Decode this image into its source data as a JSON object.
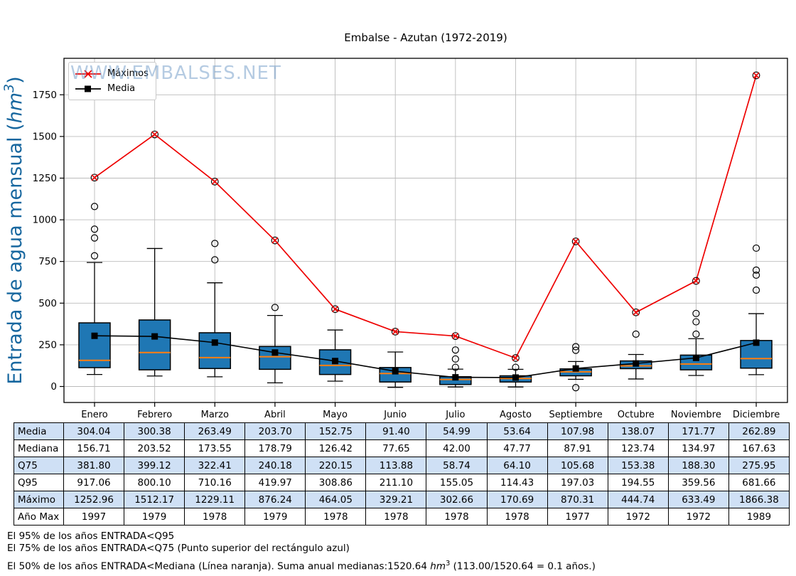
{
  "watermark": "WWW.EMBALSES.NET",
  "colors": {
    "box_fill": "#1f77b4",
    "box_edge": "#000000",
    "median_line": "#ff7f0e",
    "maximos_line": "#ee0000",
    "media_line": "#000000",
    "grid": "#bbbbbb",
    "ylabel": "#17679f",
    "watermark": "#6d98c7",
    "table_shade": "#cfe0f5"
  },
  "chart_data": {
    "type": "boxplot+lines",
    "title": "Embalse - Azutan (1972-2019)",
    "ylabel_pre": "Entrada de agua mensual (",
    "ylabel_unit": "hm",
    "ylabel_sup": "3",
    "ylabel_post": ")",
    "ylim": [
      -96,
      1969
    ],
    "yticks": [
      0,
      250,
      500,
      750,
      1000,
      1250,
      1500,
      1750
    ],
    "grid": true,
    "legend_position": "upper left",
    "categories": [
      "Enero",
      "Febrero",
      "Marzo",
      "Abril",
      "Mayo",
      "Junio",
      "Julio",
      "Agosto",
      "Septiembre",
      "Octubre",
      "Noviembre",
      "Diciembre"
    ],
    "series": [
      {
        "name": "Máximos",
        "marker": "x-in-circle",
        "values": [
          1252.96,
          1512.17,
          1229.11,
          876.24,
          464.05,
          329.21,
          302.66,
          170.69,
          870.31,
          444.74,
          633.49,
          1866.38
        ]
      },
      {
        "name": "Media",
        "marker": "square",
        "values": [
          304.04,
          300.38,
          263.49,
          203.7,
          152.75,
          91.4,
          54.99,
          53.64,
          107.98,
          138.07,
          171.77,
          262.89
        ]
      }
    ],
    "boxes": [
      {
        "month": "Enero",
        "q1": 113,
        "median": 156.71,
        "q3": 381.8,
        "whisker_low": 72,
        "whisker_high": 744,
        "outliers": [
          784,
          891,
          944,
          1080
        ]
      },
      {
        "month": "Febrero",
        "q1": 100,
        "median": 203.52,
        "q3": 399.12,
        "whisker_low": 63,
        "whisker_high": 828,
        "outliers": []
      },
      {
        "month": "Marzo",
        "q1": 108,
        "median": 173.55,
        "q3": 322.41,
        "whisker_low": 58,
        "whisker_high": 622,
        "outliers": [
          760,
          858
        ]
      },
      {
        "month": "Abril",
        "q1": 103,
        "median": 178.79,
        "q3": 240.18,
        "whisker_low": 22,
        "whisker_high": 426,
        "outliers": [
          474
        ]
      },
      {
        "month": "Mayo",
        "q1": 72,
        "median": 126.42,
        "q3": 220.15,
        "whisker_low": 32,
        "whisker_high": 339,
        "outliers": []
      },
      {
        "month": "Junio",
        "q1": 27,
        "median": 77.65,
        "q3": 113.88,
        "whisker_low": -5,
        "whisker_high": 207,
        "outliers": []
      },
      {
        "month": "Julio",
        "q1": 12,
        "median": 42.0,
        "q3": 58.74,
        "whisker_low": -3,
        "whisker_high": 104,
        "outliers": [
          115,
          165,
          219
        ]
      },
      {
        "month": "Agosto",
        "q1": 27,
        "median": 47.77,
        "q3": 64.1,
        "whisker_low": -3,
        "whisker_high": 103,
        "outliers": [
          115
        ]
      },
      {
        "month": "Septiembre",
        "q1": 64,
        "median": 87.91,
        "q3": 105.68,
        "whisker_low": 43,
        "whisker_high": 150,
        "outliers": [
          -7,
          217,
          239
        ]
      },
      {
        "month": "Octubre",
        "q1": 107,
        "median": 123.74,
        "q3": 153.38,
        "whisker_low": 45,
        "whisker_high": 192,
        "outliers": [
          314
        ]
      },
      {
        "month": "Noviembre",
        "q1": 100,
        "median": 134.97,
        "q3": 188.3,
        "whisker_low": 66,
        "whisker_high": 287,
        "outliers": [
          314,
          388,
          438
        ]
      },
      {
        "month": "Diciembre",
        "q1": 110,
        "median": 167.63,
        "q3": 275.95,
        "whisker_low": 71,
        "whisker_high": 437,
        "outliers": [
          578,
          668,
          698,
          830
        ]
      }
    ]
  },
  "table": {
    "row_labels": [
      "Media",
      "Mediana",
      "Q75",
      "Q95",
      "Máximo",
      "Año Max"
    ],
    "rows": [
      [
        "304.04",
        "300.38",
        "263.49",
        "203.70",
        "152.75",
        "91.40",
        "54.99",
        "53.64",
        "107.98",
        "138.07",
        "171.77",
        "262.89"
      ],
      [
        "156.71",
        "203.52",
        "173.55",
        "178.79",
        "126.42",
        "77.65",
        "42.00",
        "47.77",
        "87.91",
        "123.74",
        "134.97",
        "167.63"
      ],
      [
        "381.80",
        "399.12",
        "322.41",
        "240.18",
        "220.15",
        "113.88",
        "58.74",
        "64.10",
        "105.68",
        "153.38",
        "188.30",
        "275.95"
      ],
      [
        "917.06",
        "800.10",
        "710.16",
        "419.97",
        "308.86",
        "211.10",
        "155.05",
        "114.43",
        "197.03",
        "194.55",
        "359.56",
        "681.66"
      ],
      [
        "1252.96",
        "1512.17",
        "1229.11",
        "876.24",
        "464.05",
        "329.21",
        "302.66",
        "170.69",
        "870.31",
        "444.74",
        "633.49",
        "1866.38"
      ],
      [
        "1997",
        "1979",
        "1978",
        "1979",
        "1978",
        "1978",
        "1978",
        "1978",
        "1977",
        "1972",
        "1972",
        "1989"
      ]
    ]
  },
  "notes": {
    "line1": "El 95% de los años ENTRADA<Q95",
    "line2": "El 75% de los años ENTRADA<Q75 (Punto superior del rectángulo azul)",
    "line3_pre": "El 50% de los años ENTRADA<Mediana (Línea naranja). Suma anual medianas:1520.64 ",
    "unit": "hm",
    "unit_sup": "3",
    "line3_post": " (113.00/1520.64 = 0.1 años.)"
  }
}
